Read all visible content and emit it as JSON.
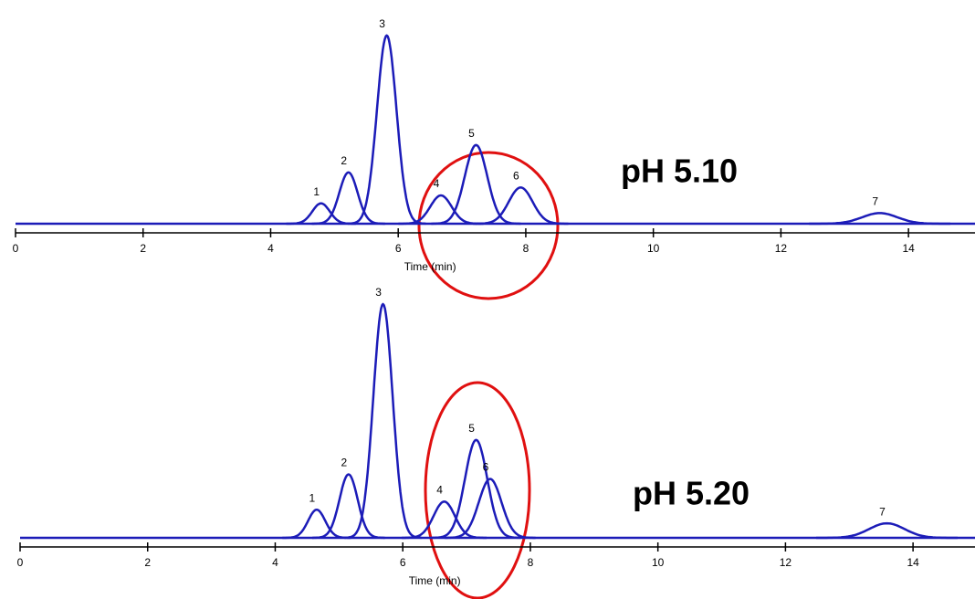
{
  "chart_data": [
    {
      "type": "peak",
      "annotation": "pH 5.10",
      "xlabel": "Time (min)",
      "categories": [
        "1",
        "2",
        "3",
        "4",
        "5",
        "6",
        "7"
      ],
      "x": [
        4.79,
        5.22,
        5.82,
        6.67,
        7.22,
        7.92,
        13.55
      ],
      "values": [
        23,
        58,
        213,
        32,
        89,
        41,
        12
      ],
      "color": "#1c1cb8",
      "xlim": [
        0,
        15
      ],
      "ylim": [
        0,
        220
      ],
      "xticks": [
        0,
        2,
        4,
        6,
        8,
        10,
        12,
        14
      ]
    },
    {
      "type": "peak",
      "annotation": "pH 5.20",
      "xlabel": "Time (min)",
      "categories": [
        "1",
        "2",
        "3",
        "4",
        "5",
        "6",
        "7"
      ],
      "x": [
        4.65,
        5.15,
        5.69,
        6.65,
        7.15,
        7.37,
        13.59
      ],
      "values": [
        31,
        70,
        258,
        40,
        108,
        65,
        16
      ],
      "color": "#1c1cb8",
      "xlim": [
        0,
        15
      ],
      "ylim": [
        0,
        260
      ],
      "xticks": [
        0,
        2,
        4,
        6,
        8,
        10,
        12,
        14
      ]
    }
  ]
}
